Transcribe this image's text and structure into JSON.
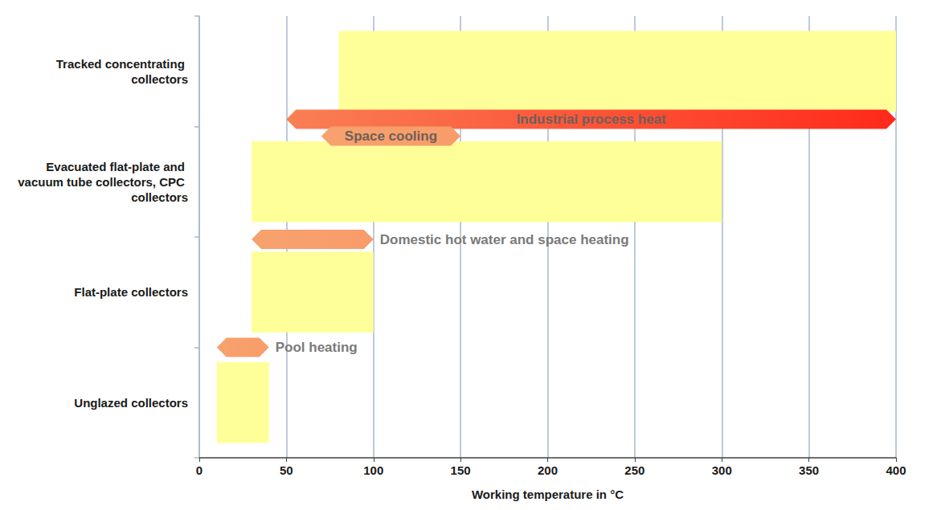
{
  "chart_data": {
    "type": "range_bar",
    "orientation": "horizontal",
    "categories": [
      "Tracked concentrating collectors",
      "Evacuated flat-plate and vacuum tube collectors, CPC collectors",
      "Flat-plate collectors",
      "Unglazed collectors"
    ],
    "values": [
      [
        80,
        400
      ],
      [
        30,
        300
      ],
      [
        30,
        100
      ],
      [
        10,
        40
      ]
    ],
    "color": "#ffff99",
    "annotations": [
      {
        "text": "Industrial process heat",
        "range": [
          50,
          400
        ],
        "color": "#ff2a1a"
      },
      {
        "text": "Space cooling",
        "range": [
          70,
          150
        ],
        "color": "#f89c6a"
      },
      {
        "text": "Domestic hot water and space heating",
        "range": [
          30,
          100
        ],
        "color": "#f89c6a"
      },
      {
        "text": "Pool heating",
        "range": [
          10,
          40
        ],
        "color": "#f89c6a"
      }
    ],
    "xlabel": "Working temperature in °C",
    "xlim": [
      0,
      400
    ],
    "xticks": [
      0,
      50,
      100,
      150,
      200,
      250,
      300,
      350,
      400
    ],
    "grid": true
  }
}
